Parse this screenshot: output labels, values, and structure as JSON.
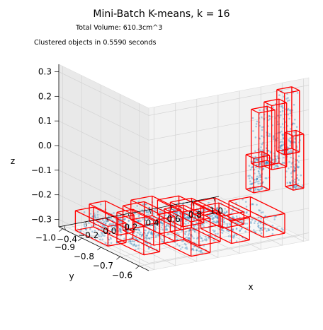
{
  "chart_data": {
    "type": "scatter",
    "projection": "3d",
    "title": "Mini-Batch K-means, k = 16",
    "annotations": [
      "Total Volume: 610.3cm^3",
      "Clustered objects in 0.5590 seconds"
    ],
    "xlabel": "x",
    "ylabel": "y",
    "zlabel": "z",
    "x_ticks": [
      "−0.4",
      "−0.2",
      "0.0",
      "0.2",
      "0.4",
      "0.6",
      "0.8",
      "1.0"
    ],
    "y_ticks": [
      "−0.6",
      "−0.7",
      "−0.8",
      "−0.9",
      "−1.0"
    ],
    "z_ticks": [
      "0.3",
      "0.2",
      "0.1",
      "0.0",
      "−0.1",
      "−0.2",
      "−0.3"
    ],
    "xlim": [
      -0.45,
      1.05
    ],
    "ylim": [
      -1.02,
      -0.55
    ],
    "zlim": [
      -0.33,
      0.33
    ],
    "grid": true,
    "clusters": 16,
    "point_color": "#1f77b4",
    "box_color": "#ff0000",
    "boxes": [
      {
        "x": [
          -0.42,
          -0.25
        ],
        "y": [
          -0.95,
          -0.78
        ],
        "z": [
          -0.32,
          -0.24
        ]
      },
      {
        "x": [
          -0.3,
          -0.15
        ],
        "y": [
          -0.8,
          -0.66
        ],
        "z": [
          -0.32,
          -0.2
        ]
      },
      {
        "x": [
          -0.2,
          -0.05
        ],
        "y": [
          -1.0,
          -0.85
        ],
        "z": [
          -0.32,
          -0.25
        ]
      },
      {
        "x": [
          -0.1,
          0.1
        ],
        "y": [
          -0.88,
          -0.72
        ],
        "z": [
          -0.32,
          -0.22
        ]
      },
      {
        "x": [
          0.0,
          0.18
        ],
        "y": [
          -0.72,
          -0.58
        ],
        "z": [
          -0.32,
          -0.18
        ]
      },
      {
        "x": [
          0.1,
          0.3
        ],
        "y": [
          -0.95,
          -0.8
        ],
        "z": [
          -0.32,
          -0.24
        ]
      },
      {
        "x": [
          0.2,
          0.4
        ],
        "y": [
          -0.8,
          -0.65
        ],
        "z": [
          -0.32,
          -0.2
        ]
      },
      {
        "x": [
          0.35,
          0.55
        ],
        "y": [
          -0.95,
          -0.82
        ],
        "z": [
          -0.32,
          -0.26
        ]
      },
      {
        "x": [
          0.45,
          0.62
        ],
        "y": [
          -0.78,
          -0.62
        ],
        "z": [
          -0.32,
          -0.23
        ]
      },
      {
        "x": [
          0.6,
          0.8
        ],
        "y": [
          -0.9,
          -0.75
        ],
        "z": [
          -0.32,
          -0.27
        ]
      },
      {
        "x": [
          0.75,
          0.95
        ],
        "y": [
          -0.8,
          -0.62
        ],
        "z": [
          -0.32,
          -0.24
        ]
      },
      {
        "x": [
          0.6,
          0.75
        ],
        "y": [
          -0.6,
          -0.56
        ],
        "z": [
          0.0,
          0.22
        ]
      },
      {
        "x": [
          0.72,
          0.86
        ],
        "y": [
          -0.6,
          -0.56
        ],
        "z": [
          -0.02,
          0.24
        ]
      },
      {
        "x": [
          0.84,
          0.98
        ],
        "y": [
          -0.6,
          -0.56
        ],
        "z": [
          0.03,
          0.28
        ]
      },
      {
        "x": [
          0.92,
          1.02
        ],
        "y": [
          -0.6,
          -0.56
        ],
        "z": [
          -0.12,
          0.1
        ]
      },
      {
        "x": [
          0.55,
          0.7
        ],
        "y": [
          -0.6,
          -0.56
        ],
        "z": [
          -0.1,
          0.04
        ]
      }
    ]
  }
}
